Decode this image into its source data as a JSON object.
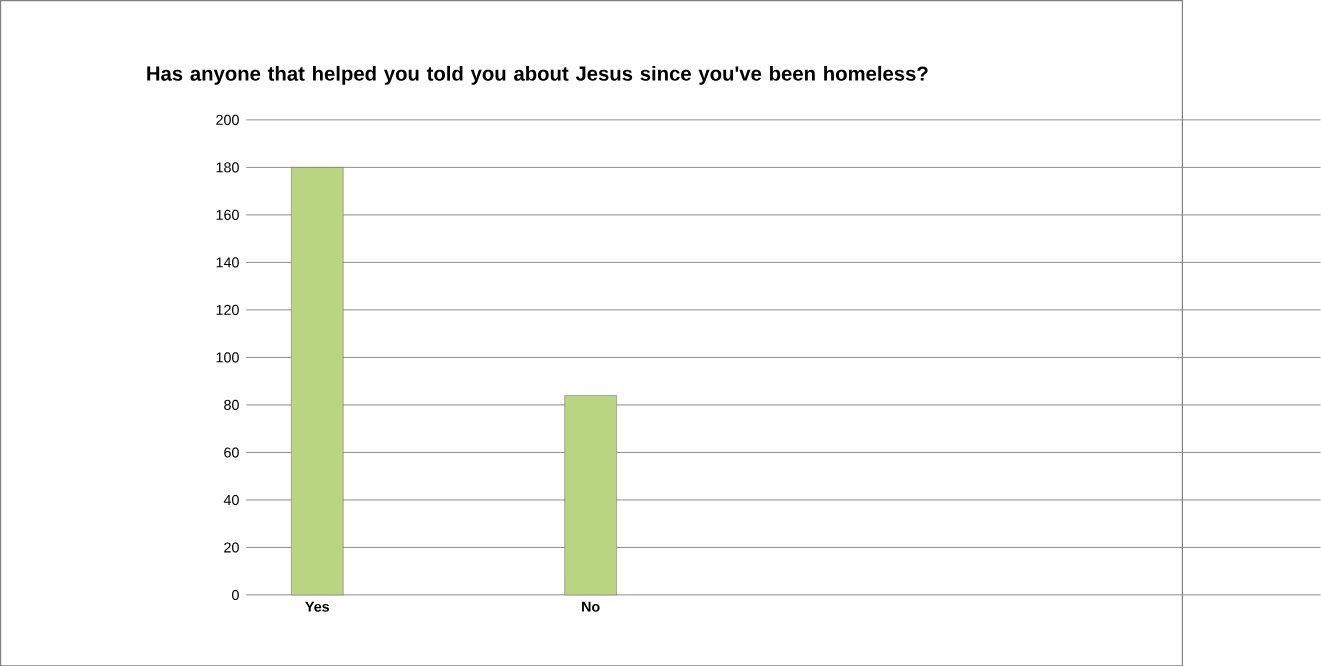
{
  "chart_data": {
    "type": "bar",
    "title": "Has anyone that helped you told you about Jesus since you've been homeless?",
    "categories": [
      "Yes",
      "No"
    ],
    "values": [
      180,
      84
    ],
    "color": "#b9d582",
    "ylim": [
      0,
      200
    ],
    "yticks": [
      0,
      20,
      40,
      60,
      80,
      100,
      120,
      140,
      160,
      180,
      200
    ],
    "grid": "y"
  }
}
